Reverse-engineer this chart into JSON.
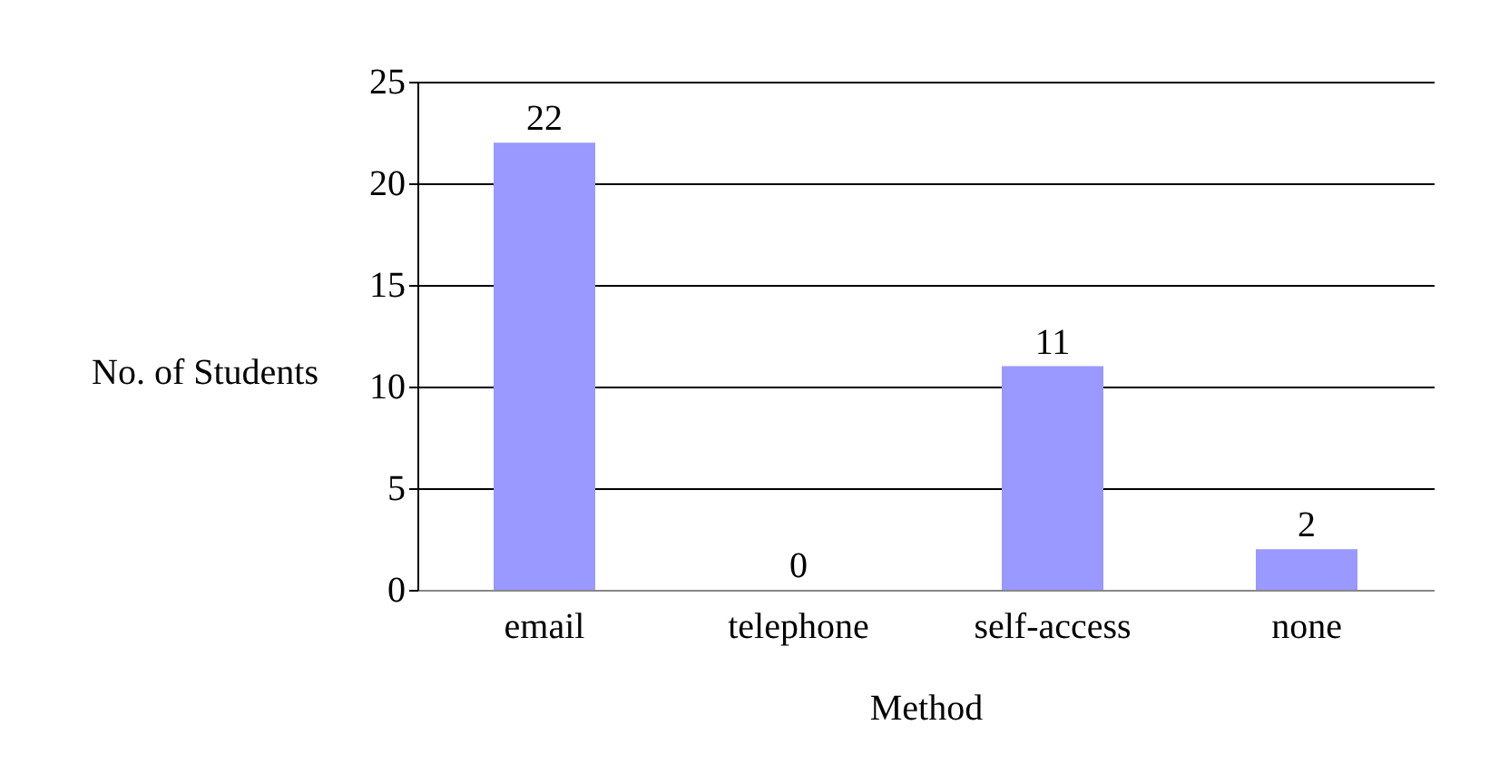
{
  "chart_data": {
    "type": "bar",
    "xlabel": "Method",
    "ylabel": "No. of Students",
    "categories": [
      "email",
      "telephone",
      "self-access",
      "none"
    ],
    "values": [
      22,
      0,
      11,
      2
    ],
    "color": "#9999ff",
    "ylim": [
      0,
      25
    ],
    "yticks": [
      0,
      5,
      10,
      15,
      20,
      25
    ],
    "grid": "y",
    "data_labels": true
  }
}
